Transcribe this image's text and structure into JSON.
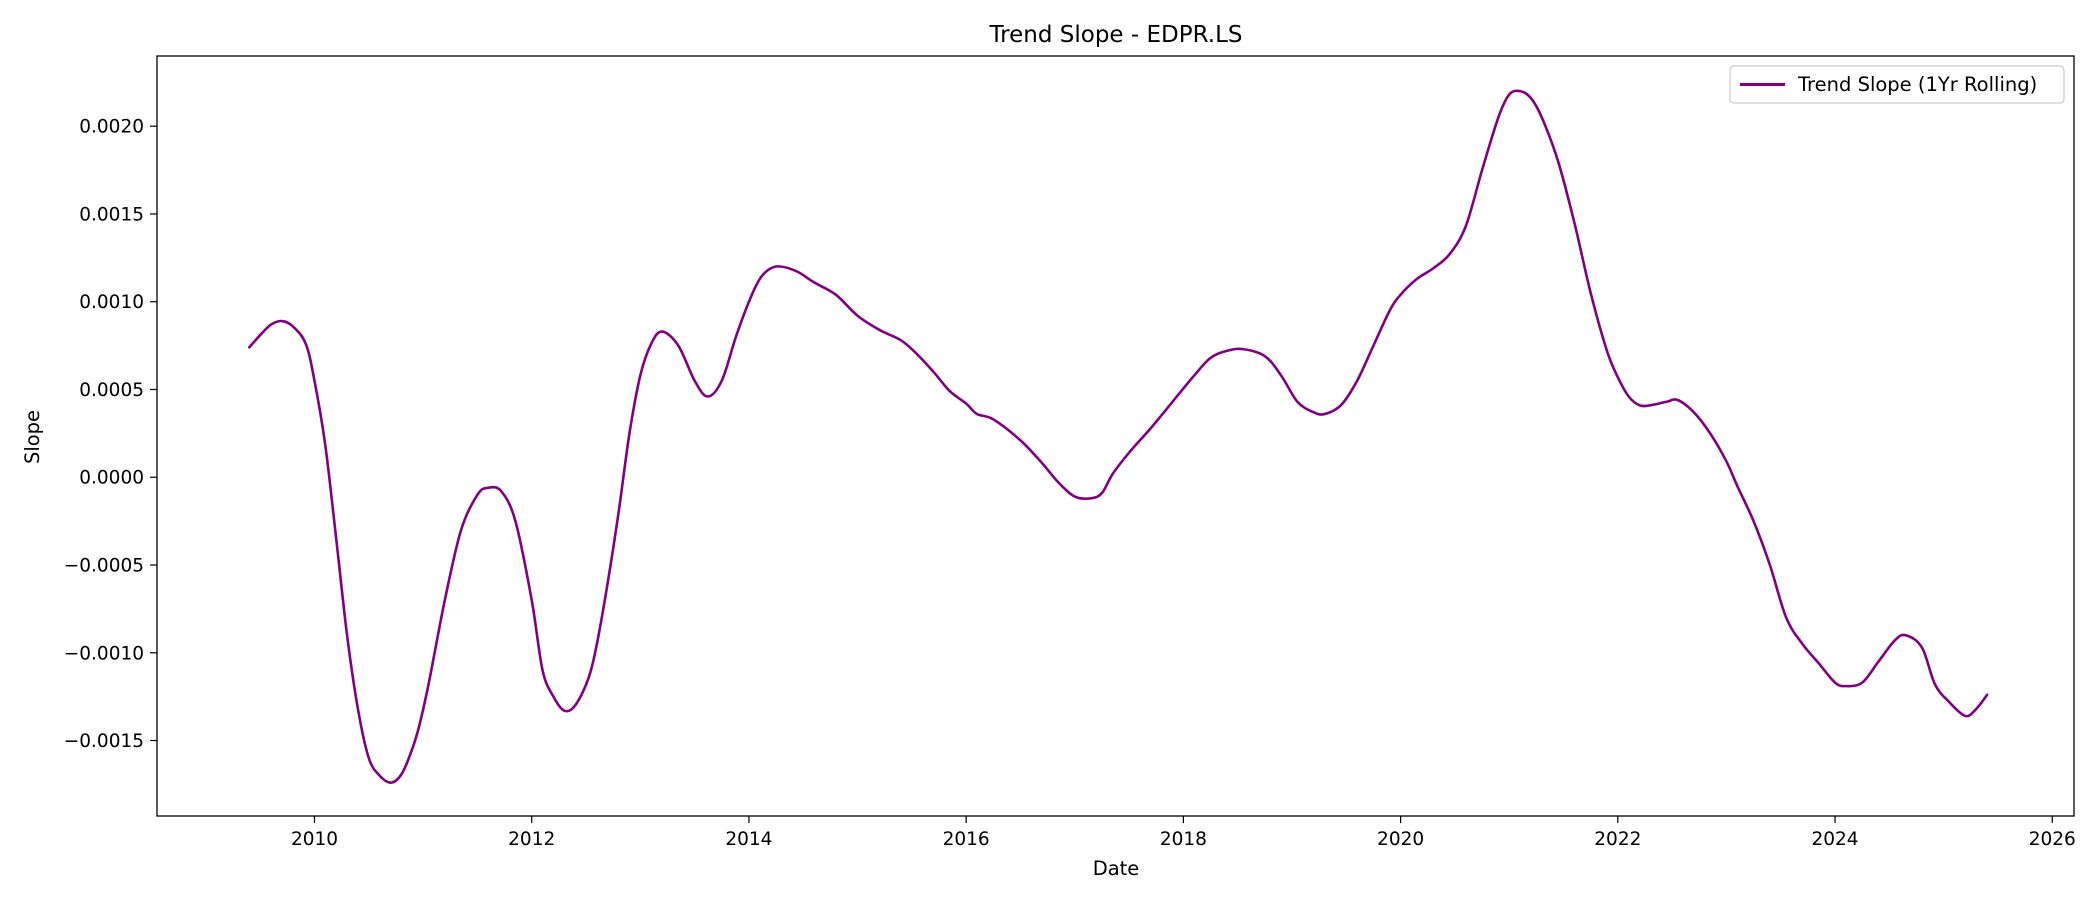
{
  "chart_data": {
    "type": "line",
    "title": "Trend Slope - EDPR.LS",
    "xlabel": "Date",
    "ylabel": "Slope",
    "xlim": [
      2008.55,
      2026.2
    ],
    "ylim": [
      -0.00193,
      0.0024
    ],
    "x_ticks": [
      2010,
      2012,
      2014,
      2016,
      2018,
      2020,
      2022,
      2024,
      2026
    ],
    "x_tick_labels": [
      "2010",
      "2012",
      "2014",
      "2016",
      "2018",
      "2020",
      "2022",
      "2024",
      "2026"
    ],
    "y_ticks": [
      -0.0015,
      -0.001,
      -0.0005,
      0.0,
      0.0005,
      0.001,
      0.0015,
      0.002
    ],
    "y_tick_labels": [
      "−0.0015",
      "−0.0010",
      "−0.0005",
      "0.0000",
      "0.0005",
      "0.0010",
      "0.0015",
      "0.0020"
    ],
    "grid": false,
    "legend_position": "top-right",
    "series": [
      {
        "name": "Trend Slope (1Yr Rolling)",
        "color": "#800080",
        "x": [
          2009.4,
          2009.5,
          2009.6,
          2009.7,
          2009.8,
          2009.92,
          2010.0,
          2010.1,
          2010.2,
          2010.3,
          2010.4,
          2010.5,
          2010.6,
          2010.7,
          2010.78,
          2010.85,
          2010.95,
          2011.05,
          2011.2,
          2011.35,
          2011.5,
          2011.6,
          2011.72,
          2011.85,
          2012.0,
          2012.1,
          2012.2,
          2012.3,
          2012.4,
          2012.52,
          2012.6,
          2012.7,
          2012.8,
          2012.9,
          2013.0,
          2013.1,
          2013.2,
          2013.35,
          2013.5,
          2013.62,
          2013.75,
          2013.88,
          2014.0,
          2014.1,
          2014.2,
          2014.3,
          2014.45,
          2014.6,
          2014.8,
          2015.0,
          2015.2,
          2015.4,
          2015.55,
          2015.7,
          2015.85,
          2016.0,
          2016.1,
          2016.25,
          2016.5,
          2016.7,
          2016.85,
          2017.0,
          2017.15,
          2017.25,
          2017.35,
          2017.5,
          2017.7,
          2017.9,
          2018.1,
          2018.25,
          2018.4,
          2018.55,
          2018.75,
          2018.9,
          2019.05,
          2019.2,
          2019.3,
          2019.45,
          2019.6,
          2019.75,
          2019.9,
          2020.0,
          2020.15,
          2020.3,
          2020.45,
          2020.6,
          2020.75,
          2020.9,
          2021.0,
          2021.1,
          2021.2,
          2021.3,
          2021.45,
          2021.6,
          2021.75,
          2021.9,
          2022.0,
          2022.1,
          2022.2,
          2022.3,
          2022.45,
          2022.55,
          2022.7,
          2022.85,
          2023.0,
          2023.1,
          2023.25,
          2023.4,
          2023.55,
          2023.7,
          2023.85,
          2024.0,
          2024.1,
          2024.25,
          2024.4,
          2024.55,
          2024.65,
          2024.8,
          2024.92,
          2025.05,
          2025.2,
          2025.3,
          2025.4
        ],
        "y": [
          0.00074,
          0.00081,
          0.00087,
          0.00089,
          0.00086,
          0.00076,
          0.00055,
          0.00018,
          -0.00035,
          -0.0009,
          -0.00132,
          -0.0016,
          -0.0017,
          -0.00174,
          -0.00171,
          -0.00163,
          -0.00145,
          -0.00118,
          -0.0007,
          -0.0003,
          -0.0001,
          -6e-05,
          -8e-05,
          -0.00025,
          -0.0007,
          -0.0011,
          -0.00125,
          -0.00133,
          -0.0013,
          -0.00115,
          -0.00095,
          -0.0006,
          -0.0002,
          0.00025,
          0.00058,
          0.00076,
          0.00083,
          0.00075,
          0.00055,
          0.00046,
          0.00055,
          0.0008,
          0.001,
          0.00113,
          0.00119,
          0.0012,
          0.00117,
          0.00111,
          0.00104,
          0.00092,
          0.00084,
          0.00078,
          0.0007,
          0.0006,
          0.00049,
          0.00042,
          0.00036,
          0.00033,
          0.00021,
          8e-05,
          -3e-05,
          -0.00011,
          -0.00012,
          -9e-05,
          2e-05,
          0.00014,
          0.00028,
          0.00043,
          0.00058,
          0.00068,
          0.00072,
          0.00073,
          0.00069,
          0.00058,
          0.00043,
          0.00037,
          0.00036,
          0.00041,
          0.00055,
          0.00075,
          0.00095,
          0.00104,
          0.00113,
          0.00119,
          0.00127,
          0.00143,
          0.00175,
          0.00205,
          0.00218,
          0.0022,
          0.00216,
          0.00205,
          0.0018,
          0.00145,
          0.00105,
          0.00072,
          0.00057,
          0.00046,
          0.00041,
          0.00041,
          0.00043,
          0.00044,
          0.00037,
          0.00025,
          9e-05,
          -5e-05,
          -0.00025,
          -0.0005,
          -0.0008,
          -0.00095,
          -0.00106,
          -0.00117,
          -0.00119,
          -0.00117,
          -0.00105,
          -0.00093,
          -0.0009,
          -0.00097,
          -0.00118,
          -0.00128,
          -0.00136,
          -0.00132,
          -0.00124
        ]
      }
    ]
  }
}
